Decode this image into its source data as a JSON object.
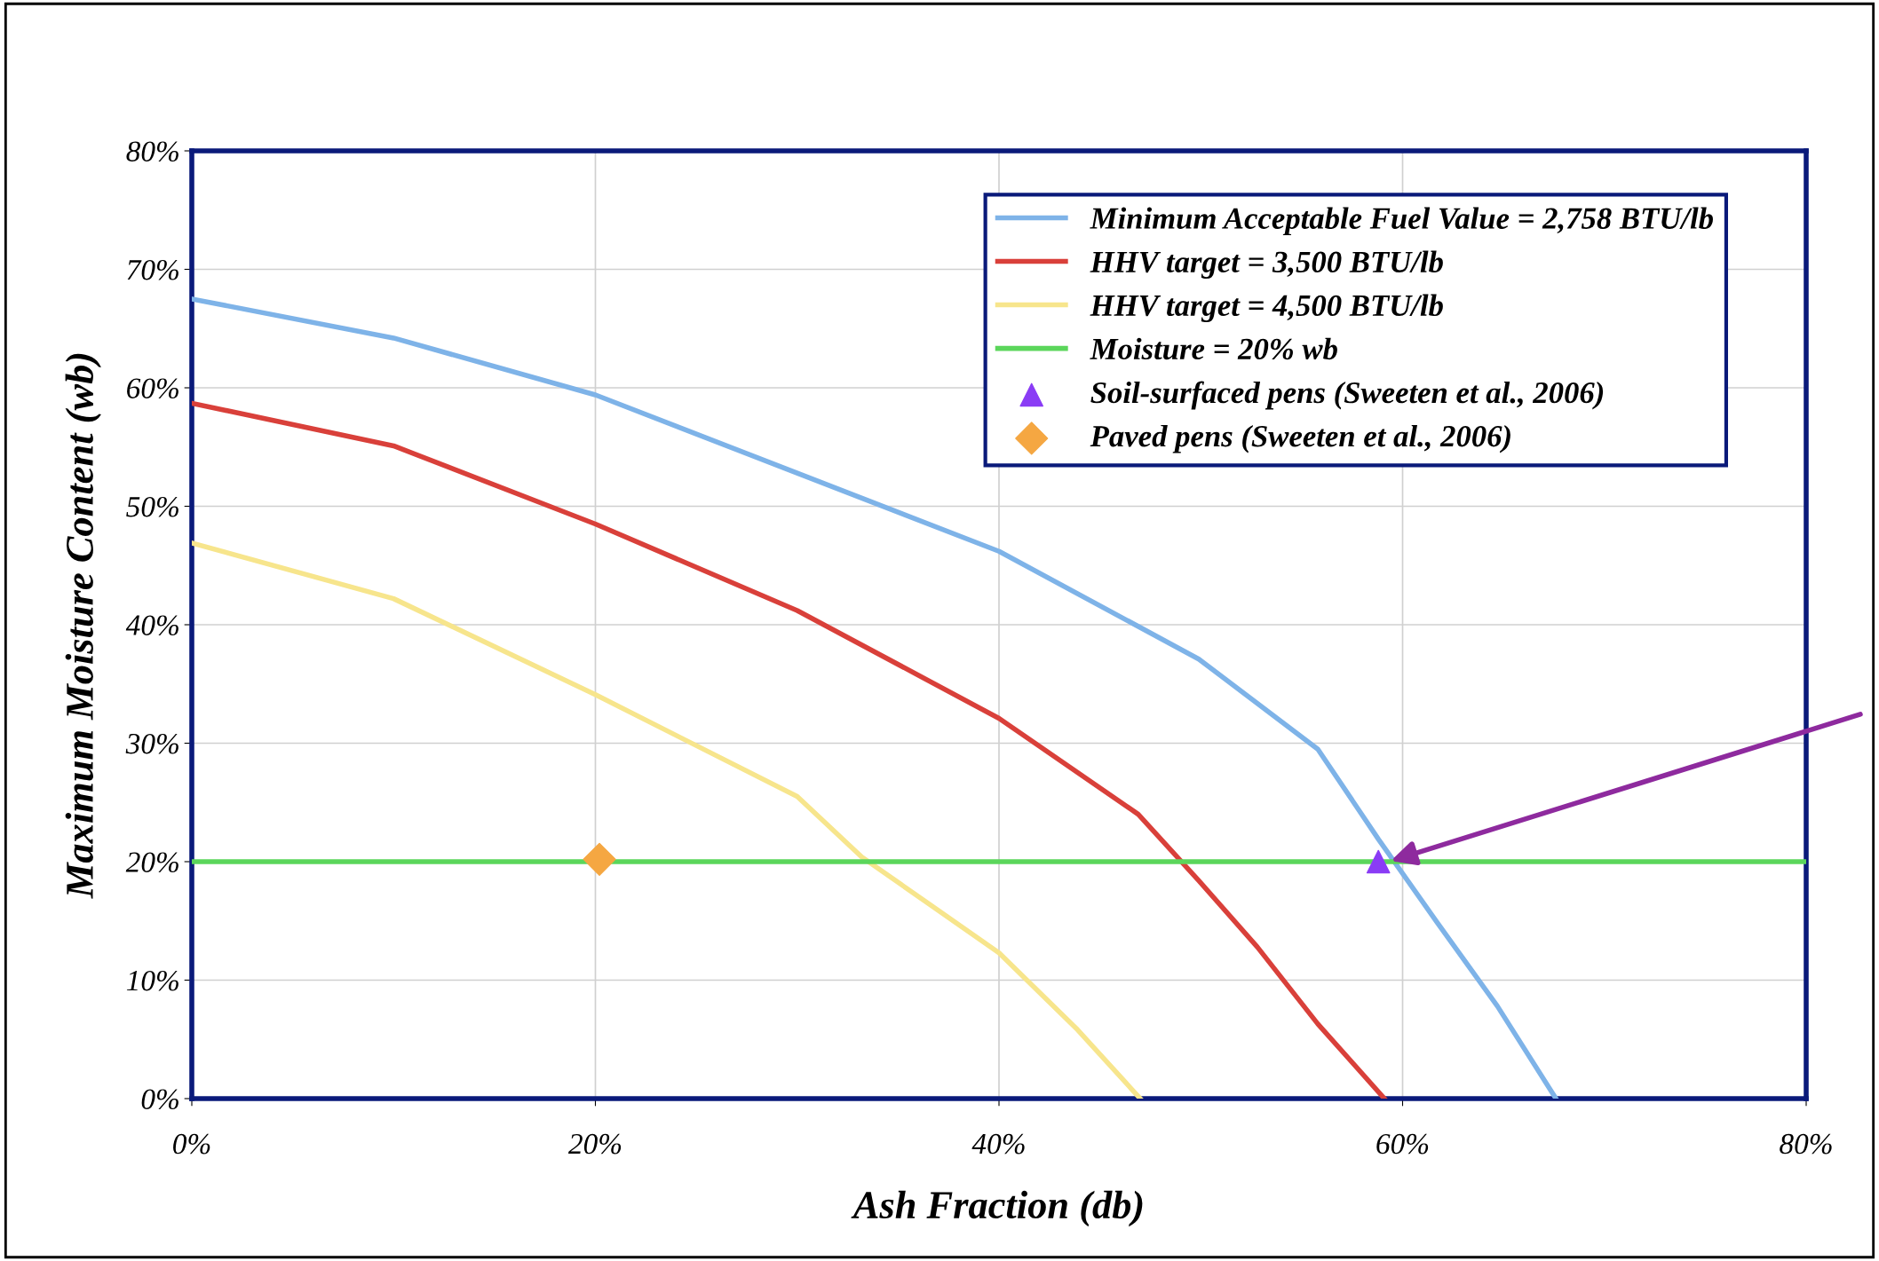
{
  "chart_data": {
    "type": "line",
    "xlabel": "Ash Fraction (db)",
    "ylabel": "Maximum Moisture Content (wb)",
    "xlim": [
      0,
      80
    ],
    "ylim": [
      0,
      80
    ],
    "xticks": [
      {
        "value": 0,
        "label": "0%"
      },
      {
        "value": 20,
        "label": "20%"
      },
      {
        "value": 40,
        "label": "40%"
      },
      {
        "value": 60,
        "label": "60%"
      },
      {
        "value": 80,
        "label": "80%"
      }
    ],
    "yticks": [
      {
        "value": 0,
        "label": "0%"
      },
      {
        "value": 10,
        "label": "10%"
      },
      {
        "value": 20,
        "label": "20%"
      },
      {
        "value": 30,
        "label": "30%"
      },
      {
        "value": 40,
        "label": "40%"
      },
      {
        "value": 50,
        "label": "50%"
      },
      {
        "value": 60,
        "label": "60%"
      },
      {
        "value": 70,
        "label": "70%"
      },
      {
        "value": 80,
        "label": "80%"
      }
    ],
    "grid": true,
    "legend": "top right",
    "series": [
      {
        "name": "Minimum Acceptable Fuel Value = 2,758 BTU/lb",
        "color": "#7eb3e8",
        "x": [
          0,
          10,
          20,
          30,
          40,
          49.9,
          55.8,
          58.8,
          61.7,
          64.7,
          67.6
        ],
        "values": [
          67.5,
          64.2,
          59.4,
          52.8,
          46.2,
          37.1,
          29.5,
          21.9,
          14.9,
          7.8,
          0
        ]
      },
      {
        "name": "HHV target = 3,500 BTU/lb",
        "color": "#d9403a",
        "x": [
          0,
          10,
          20,
          30,
          40,
          46.9,
          49.9,
          52.8,
          55.8,
          59.1
        ],
        "values": [
          58.7,
          55.1,
          48.5,
          41.2,
          32.1,
          24.0,
          18.4,
          12.8,
          6.3,
          0
        ]
      },
      {
        "name": "HHV target = 4,500 BTU/lb",
        "color": "#f7e58c",
        "x": [
          0,
          10,
          20,
          30,
          33.2,
          40,
          43.9,
          47.0
        ],
        "values": [
          46.9,
          42.2,
          34.1,
          25.5,
          20.4,
          12.3,
          5.8,
          0
        ]
      },
      {
        "name": "Moisture = 20% wb",
        "color": "#5bd65b",
        "x": [
          0,
          80
        ],
        "values": [
          20,
          20
        ]
      },
      {
        "name": "Soil-surfaced pens (Sweeten et al., 2006)",
        "type": "scatter",
        "marker": "triangle",
        "color": "#8a3cf5",
        "x": [
          58.8
        ],
        "values": [
          20
        ]
      },
      {
        "name": "Paved pens (Sweeten et al., 2006)",
        "type": "scatter",
        "marker": "diamond",
        "color": "#f5a742",
        "x": [
          20.2
        ],
        "values": [
          20.2
        ]
      }
    ]
  }
}
